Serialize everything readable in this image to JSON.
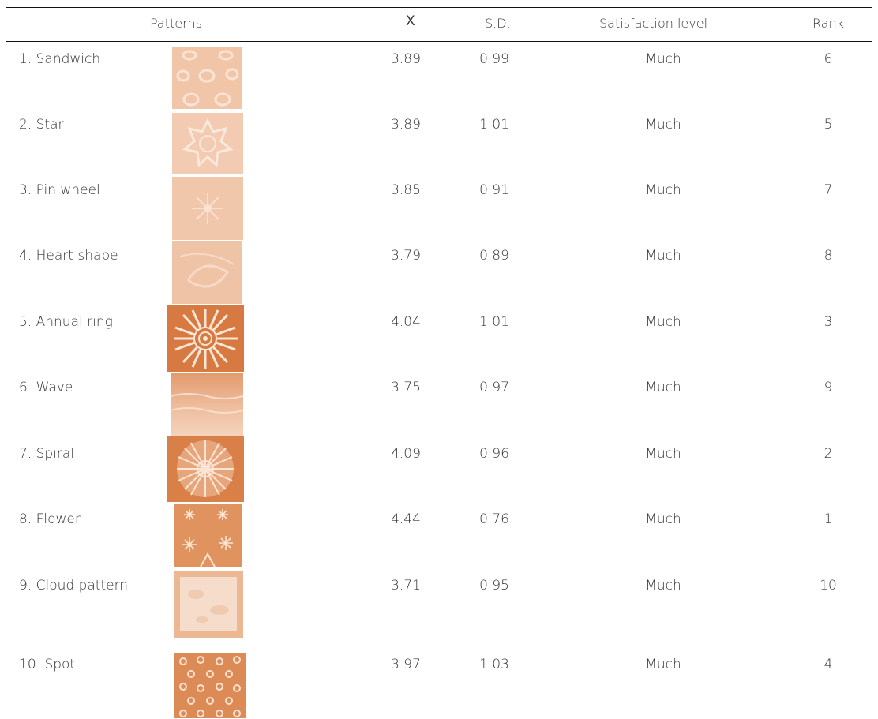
{
  "header": {
    "patterns": "Patterns",
    "mean": "X",
    "sd": "S.D.",
    "satisfaction": "Satisfaction level",
    "rank": "Rank"
  },
  "rows": [
    {
      "pattern": "1. Sandwich",
      "mean": "3.89",
      "sd": "0.99",
      "level": "Much",
      "rank": "6",
      "icon": "sandwich-swatch-icon"
    },
    {
      "pattern": "2. Star",
      "mean": "3.89",
      "sd": "1.01",
      "level": "Much",
      "rank": "5",
      "icon": "star-swatch-icon"
    },
    {
      "pattern": "3. Pin wheel",
      "mean": "3.85",
      "sd": "0.91",
      "level": "Much",
      "rank": "7",
      "icon": "pin-wheel-swatch-icon"
    },
    {
      "pattern": "4. Heart shape",
      "mean": "3.79",
      "sd": "0.89",
      "level": "Much",
      "rank": "8",
      "icon": "heart-shape-swatch-icon"
    },
    {
      "pattern": "5. Annual ring",
      "mean": "4.04",
      "sd": "1.01",
      "level": "Much",
      "rank": "3",
      "icon": "annual-ring-swatch-icon"
    },
    {
      "pattern": "6. Wave",
      "mean": "3.75",
      "sd": "0.97",
      "level": "Much",
      "rank": "9",
      "icon": "wave-swatch-icon"
    },
    {
      "pattern": "7. Spiral",
      "mean": "4.09",
      "sd": "0.96",
      "level": "Much",
      "rank": "2",
      "icon": "spiral-swatch-icon"
    },
    {
      "pattern": "8. Flower",
      "mean": "4.44",
      "sd": "0.76",
      "level": "Much",
      "rank": "1",
      "icon": "flower-swatch-icon"
    },
    {
      "pattern": "9. Cloud pattern",
      "mean": "3.71",
      "sd": "0.95",
      "level": "Much",
      "rank": "10",
      "icon": "cloud-pattern-swatch-icon"
    },
    {
      "pattern": "10. Spot",
      "mean": "3.97",
      "sd": "1.03",
      "level": "Much",
      "rank": "4",
      "icon": "spot-swatch-icon"
    }
  ],
  "colors": {
    "light_dye": "#f0c3a6",
    "dark_dye": "#d7773f",
    "mid_dye": "#e29a6c"
  }
}
